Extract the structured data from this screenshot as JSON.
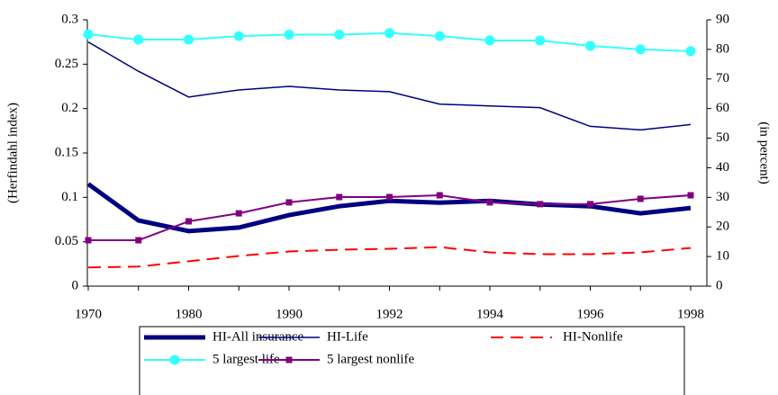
{
  "chart_data": {
    "type": "line",
    "categories": [
      "1970",
      null,
      "1980",
      null,
      "1990",
      null,
      "1992",
      null,
      "1994",
      null,
      "1996",
      null,
      "1998"
    ],
    "ylabel": "(Herfindahl index)",
    "y2label": "(in percent)",
    "ylim": [
      0,
      0.3
    ],
    "yticks": [
      0,
      0.05,
      0.1,
      0.15,
      0.2,
      0.25,
      0.3
    ],
    "y2lim": [
      0,
      90
    ],
    "y2ticks": [
      0,
      10,
      20,
      30,
      40,
      50,
      60,
      70,
      80,
      90
    ],
    "grid": false,
    "legend": "bottom",
    "series": [
      {
        "name": "HI-All insurance",
        "color": "#000080",
        "line_width": 5,
        "dash": "none",
        "marker": "none",
        "values": [
          0.115,
          0.074,
          0.062,
          0.066,
          0.08,
          0.09,
          0.096,
          0.094,
          0.096,
          0.092,
          0.09,
          0.082,
          0.088
        ]
      },
      {
        "name": "HI-Life",
        "color": "#000080",
        "line_width": 1.5,
        "dash": "none",
        "marker": "none",
        "values": [
          0.275,
          0.242,
          0.213,
          0.221,
          0.225,
          0.221,
          0.219,
          0.205,
          0.203,
          0.201,
          0.18,
          0.176,
          0.182
        ]
      },
      {
        "name": "HI-Nonlife",
        "color": "#ff0000",
        "line_width": 2,
        "dash": "dashed",
        "marker": "none",
        "values": [
          0.021,
          0.022,
          0.028,
          0.034,
          0.039,
          0.041,
          0.042,
          0.044,
          0.038,
          0.036,
          0.036,
          0.038,
          0.043
        ]
      },
      {
        "name": "5 largest life",
        "color": "#33ffff",
        "line_width": 2,
        "dash": "none",
        "marker": "circle",
        "axis": "y2",
        "values": [
          85.1,
          83.3,
          83.3,
          84.5,
          85.0,
          85.0,
          85.5,
          84.5,
          83.0,
          83.0,
          81.2,
          80.0,
          79.4
        ]
      },
      {
        "name": "5 largest nonlife",
        "color": "#800080",
        "line_width": 2,
        "dash": "none",
        "marker": "square",
        "axis": "y2",
        "values": [
          15.5,
          15.5,
          21.9,
          24.6,
          28.3,
          30.1,
          30.1,
          30.7,
          28.3,
          27.7,
          27.7,
          29.5,
          30.7
        ]
      }
    ]
  }
}
